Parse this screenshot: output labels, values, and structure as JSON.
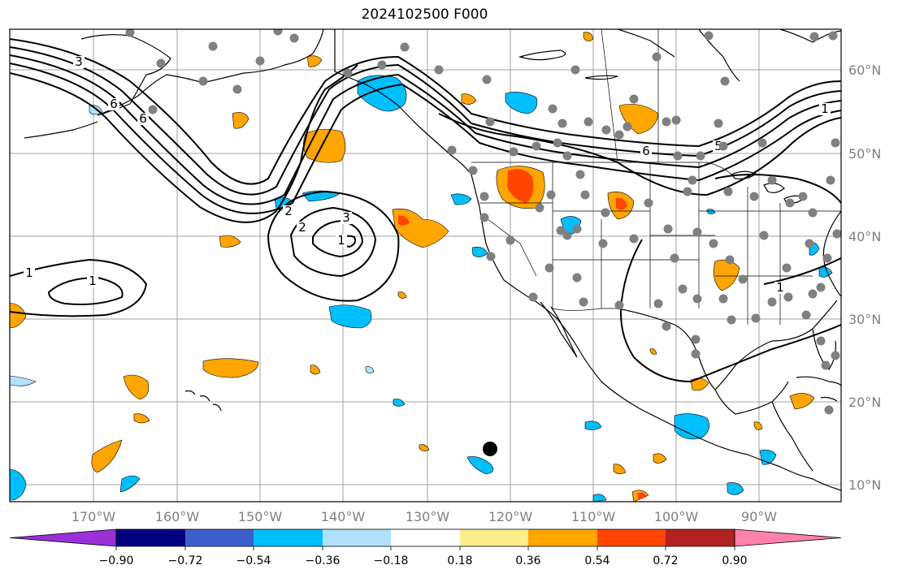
{
  "title": "2024102500 F000",
  "lat_labels": [
    "60°N",
    "50°N",
    "40°N",
    "30°N",
    "20°N",
    "10°N"
  ],
  "lon_labels": [
    "170°W",
    "160°W",
    "150°W",
    "140°W",
    "130°W",
    "120°W",
    "110°W",
    "100°W",
    "90°W"
  ],
  "colorbar": {
    "ticks": [
      "−0.90",
      "−0.72",
      "−0.54",
      "−0.36",
      "−0.18",
      "0.18",
      "0.36",
      "0.54",
      "0.72",
      "0.90"
    ],
    "colors": [
      "#9b30d9",
      "#000080",
      "#3a5fcd",
      "#00bfff",
      "#b0e2ff",
      "#ffffff",
      "#ffec8b",
      "#ffa500",
      "#ff4500",
      "#b22222",
      "#ff82ab"
    ]
  },
  "contour_labels": [
    "3",
    "6",
    "6",
    "1",
    "1",
    "2",
    "3",
    "2",
    "1",
    "6",
    "5",
    "1",
    "1"
  ],
  "colors": {
    "positive_light": "#ffec8b",
    "positive": "#ffa500",
    "positive_strong": "#ff4500",
    "negative": "#00bfff",
    "negative_light": "#b0e2ff",
    "station": "#808080",
    "grid": "#a0a0a0"
  }
}
